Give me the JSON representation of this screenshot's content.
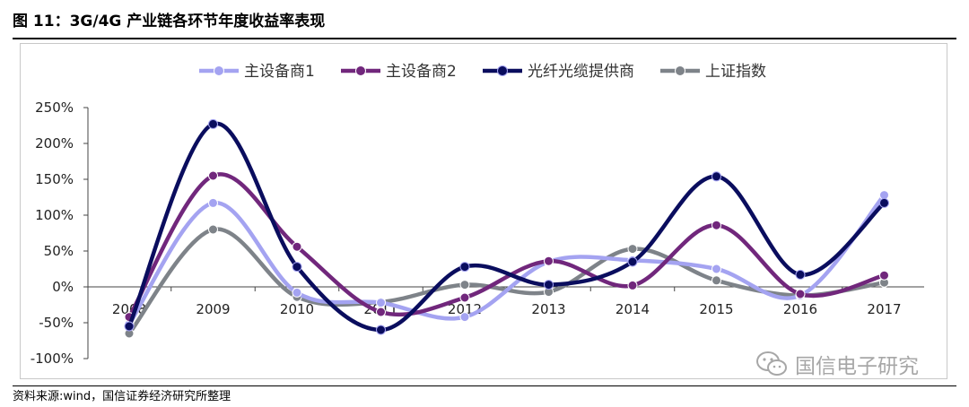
{
  "header": {
    "title": "图 11：3G/4G 产业链各环节年度收益率表现"
  },
  "footer": {
    "source": "资料来源:wind，国信证券经济研究所整理"
  },
  "watermark": {
    "text": "国信电子研究",
    "icon": "wechat-icon"
  },
  "chart_data": {
    "type": "line",
    "title": "",
    "xlabel": "",
    "ylabel": "",
    "categories": [
      "2008",
      "2009",
      "2010",
      "2011",
      "2012",
      "2013",
      "2014",
      "2015",
      "2016",
      "2017"
    ],
    "y_ticks": [
      "250%",
      "200%",
      "150%",
      "100%",
      "50%",
      "0%",
      "-50%",
      "-100%"
    ],
    "ylim": [
      -100,
      250
    ],
    "y_unit": "%",
    "smooth": true,
    "grid": false,
    "legend_position": "top",
    "series": [
      {
        "name": "主设备商1",
        "color": "#a4a3f1",
        "values": [
          -52,
          117,
          -8,
          -22,
          -42,
          35,
          37,
          25,
          -12,
          128
        ]
      },
      {
        "name": "主设备商2",
        "color": "#71277c",
        "values": [
          -42,
          155,
          56,
          -35,
          -15,
          36,
          2,
          86,
          -10,
          16
        ]
      },
      {
        "name": "光纤光缆提供商",
        "color": "#0a0d5e",
        "values": [
          -55,
          227,
          28,
          -60,
          28,
          3,
          35,
          154,
          17,
          117
        ]
      },
      {
        "name": "上证指数",
        "color": "#7e8389",
        "values": [
          -65,
          80,
          -14,
          -21,
          3,
          -7,
          53,
          9,
          -12,
          6
        ]
      }
    ]
  }
}
